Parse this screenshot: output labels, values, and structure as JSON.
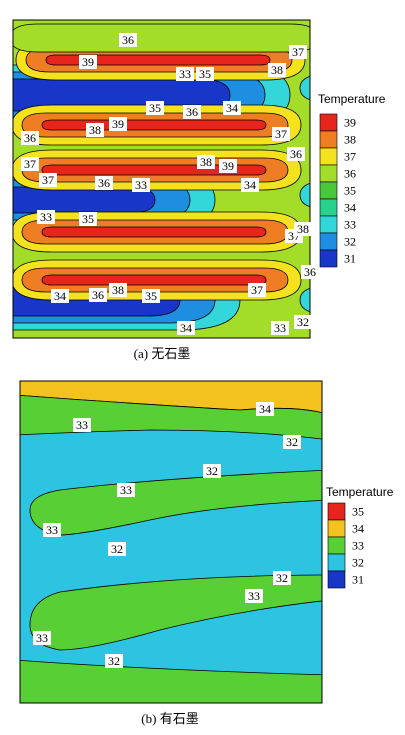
{
  "chart_data": [
    {
      "type": "heatmap",
      "caption": "(a) 无石墨",
      "legend_title": "Temperature",
      "legend_levels": [
        "39",
        "38",
        "37",
        "36",
        "35",
        "34",
        "33",
        "32",
        "31"
      ],
      "colors": {
        "39": "#e8251c",
        "38": "#ee7d24",
        "37": "#f4e21e",
        "36": "#a4dc2a",
        "35": "#49c83a",
        "34": "#28d28c",
        "33": "#33d6d9",
        "32": "#1e8ee0",
        "31": "#1836c8"
      },
      "contour_labels": [
        "36",
        "37",
        "39",
        "33",
        "35",
        "38",
        "35",
        "36",
        "34",
        "36",
        "38",
        "39",
        "37",
        "36",
        "37",
        "38",
        "39",
        "37",
        "36",
        "33",
        "34",
        "33",
        "35",
        "37",
        "38",
        "36",
        "34",
        "36",
        "38",
        "35",
        "37",
        "34",
        "33",
        "32"
      ]
    },
    {
      "type": "heatmap",
      "caption": "(b) 有石墨",
      "legend_title": "Temperature",
      "legend_levels": [
        "35",
        "34",
        "33",
        "32",
        "31"
      ],
      "colors": {
        "35": "#e8251c",
        "34": "#f4c21e",
        "33": "#58cf34",
        "32": "#2cc4e0",
        "31": "#1836c8"
      },
      "contour_labels": [
        "34",
        "33",
        "32",
        "32",
        "33",
        "33",
        "32",
        "32",
        "33",
        "33",
        "32"
      ]
    }
  ]
}
